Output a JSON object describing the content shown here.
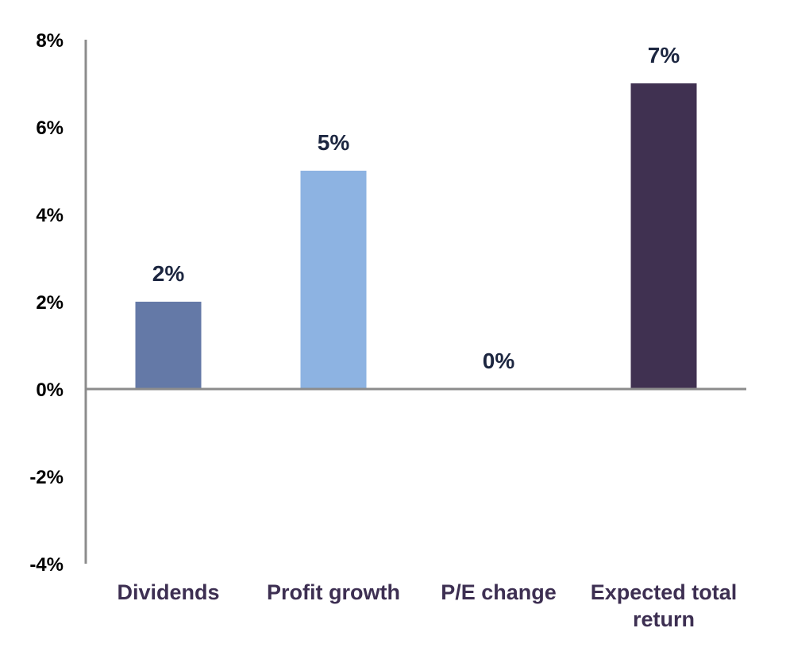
{
  "chart_data": {
    "type": "bar",
    "categories": [
      [
        "Dividends"
      ],
      [
        "Profit growth"
      ],
      [
        "P/E change"
      ],
      [
        "Expected total",
        "return"
      ]
    ],
    "values": [
      2,
      5,
      0,
      7
    ],
    "data_labels": [
      "2%",
      "5%",
      "0%",
      "7%"
    ],
    "colors": [
      "#6479a7",
      "#8db3e2",
      "#8db3e2",
      "#403151"
    ],
    "ylim": [
      -4,
      8
    ],
    "yticks": [
      8,
      6,
      4,
      2,
      0,
      -2,
      -4
    ],
    "ytick_labels": [
      "8%",
      "6%",
      "4%",
      "2%",
      "0%",
      "-2%",
      "-4%"
    ],
    "grid": false,
    "legend": false
  }
}
